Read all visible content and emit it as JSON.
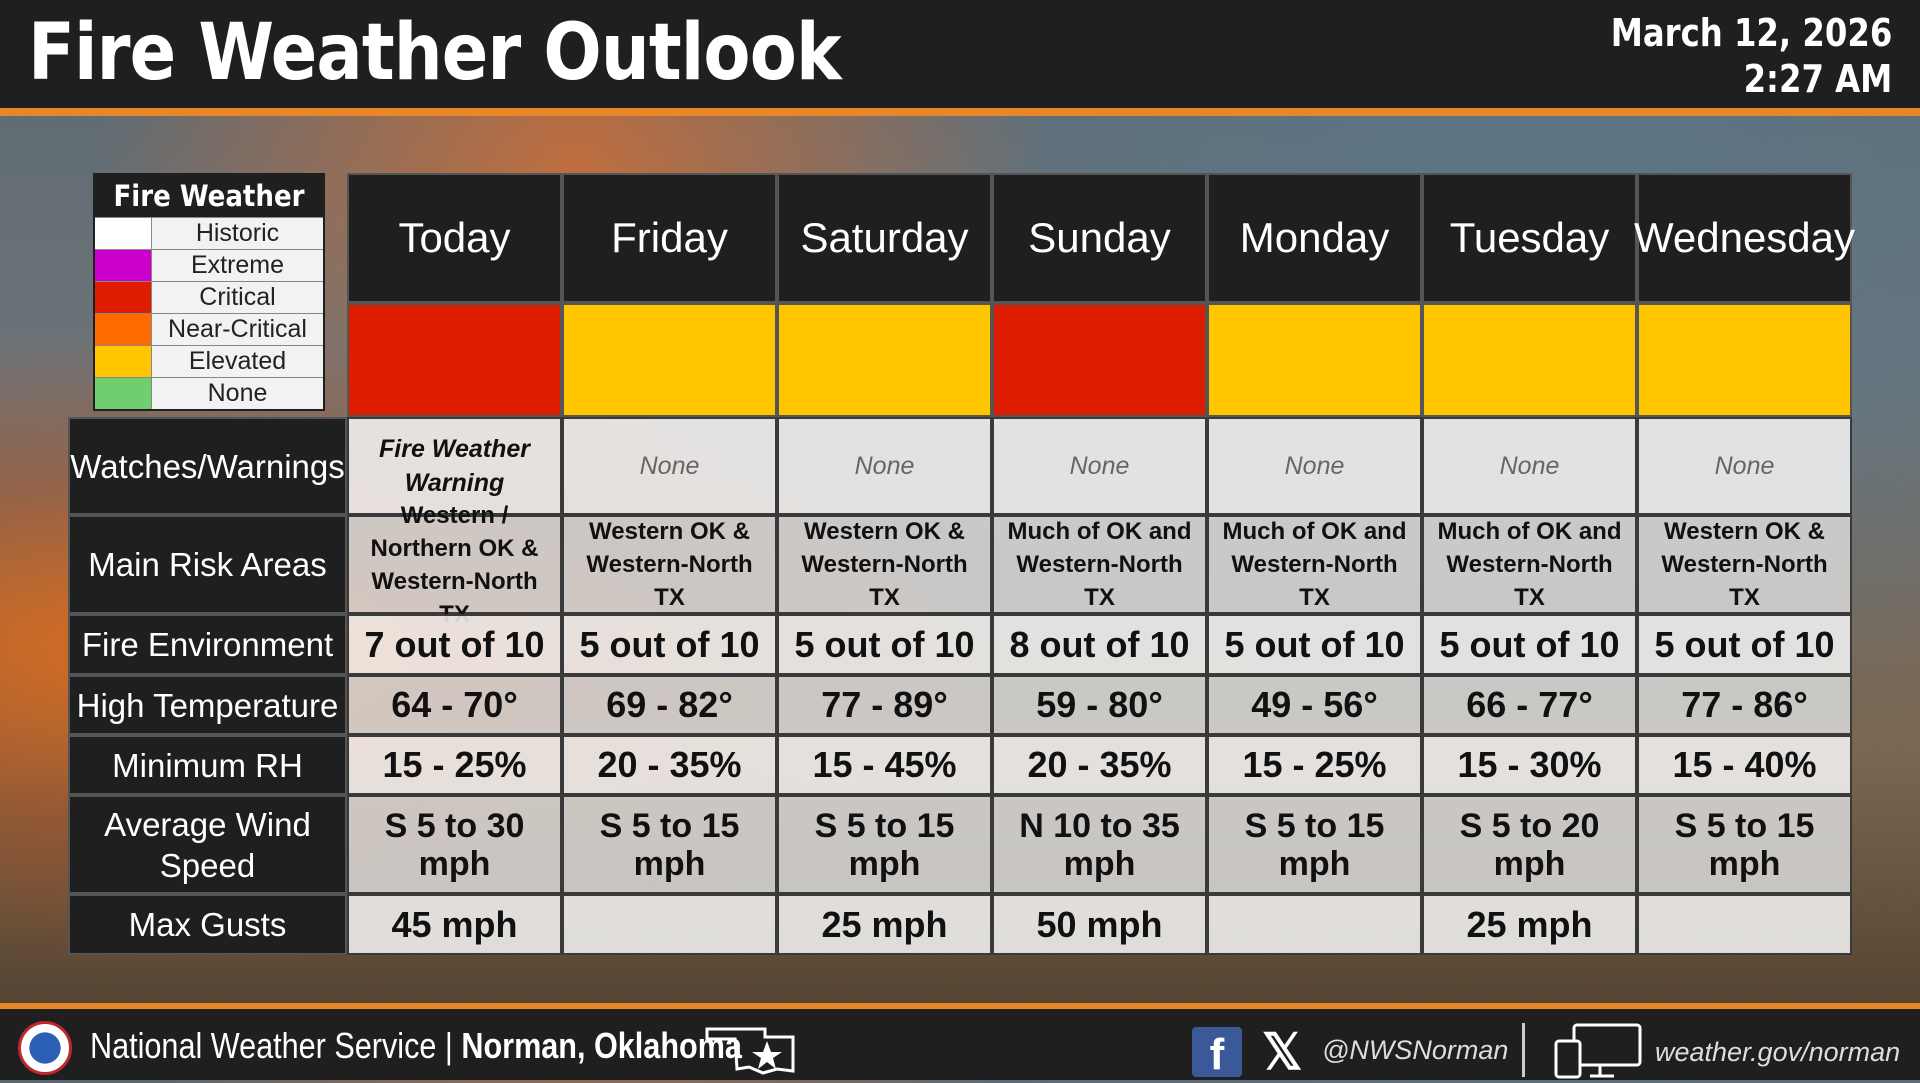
{
  "header": {
    "title": "Fire Weather Outlook",
    "date": "March 12, 2026",
    "time": "2:27 AM"
  },
  "legend": {
    "title": "Fire Weather",
    "items": [
      {
        "label": "Historic",
        "color": "#ffffff"
      },
      {
        "label": "Extreme",
        "color": "#cc00cc"
      },
      {
        "label": "Critical",
        "color": "#dd1c00"
      },
      {
        "label": "Near-Critical",
        "color": "#ff6a00"
      },
      {
        "label": "Elevated",
        "color": "#ffc600"
      },
      {
        "label": "None",
        "color": "#6fcf6f"
      }
    ]
  },
  "days": [
    "Today",
    "Friday",
    "Saturday",
    "Sunday",
    "Monday",
    "Tuesday",
    "Wednesday"
  ],
  "risk_colors": [
    "#dd1c00",
    "#ffc600",
    "#ffc600",
    "#dd1c00",
    "#ffc600",
    "#ffc600",
    "#ffc600"
  ],
  "row_labels": {
    "watches": "Watches/Warnings",
    "areas": "Main Risk Areas",
    "environment": "Fire Environment",
    "high_temp": "High Temperature",
    "min_rh": "Minimum RH",
    "wind": "Average Wind Speed",
    "gusts": "Max Gusts"
  },
  "watches": [
    "Fire Weather Warning",
    "None",
    "None",
    "None",
    "None",
    "None",
    "None"
  ],
  "areas": [
    "Western / Northern OK & Western-North TX",
    "Western OK & Western-North TX",
    "Western OK & Western-North TX",
    "Much of OK and Western-North TX",
    "Much of OK and Western-North TX",
    "Much of OK and Western-North TX",
    "Western OK & Western-North TX"
  ],
  "environment": [
    "7 out of 10",
    "5 out of 10",
    "5 out of 10",
    "8 out of 10",
    "5 out of 10",
    "5 out of 10",
    "5 out of 10"
  ],
  "high_temp": [
    "64 - 70°",
    "69 - 82°",
    "77 - 89°",
    "59 - 80°",
    "49 - 56°",
    "66 - 77°",
    "77 - 86°"
  ],
  "min_rh": [
    "15 - 25%",
    "20 - 35%",
    "15 - 45%",
    "20 - 35%",
    "15 - 25%",
    "15 - 30%",
    "15 - 40%"
  ],
  "wind": [
    "S 5 to 30 mph",
    "S 5 to 15 mph",
    "S 5 to 15 mph",
    "N 10 to 35 mph",
    "S 5 to 15 mph",
    "S 5 to 20 mph",
    "S 5 to 15 mph"
  ],
  "gusts": [
    "45 mph",
    "",
    "25 mph",
    "50 mph",
    "",
    "25 mph",
    ""
  ],
  "footer": {
    "org": "National Weather Service |",
    "office": "Norman, Oklahoma",
    "social_handle": "@NWSNorman",
    "website": "weather.gov/norman"
  }
}
